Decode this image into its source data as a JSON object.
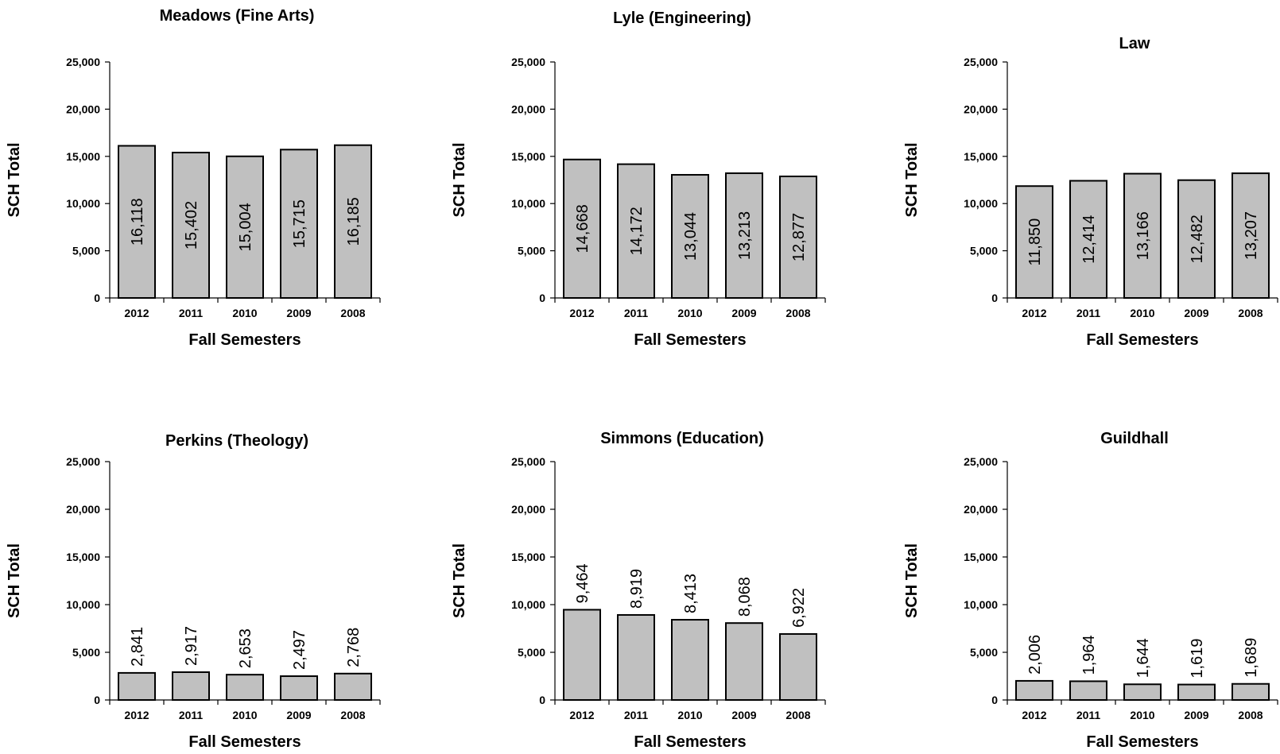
{
  "chart_data": [
    {
      "type": "bar",
      "title": "Meadows (Fine Arts)",
      "xlabel": "Fall Semesters",
      "ylabel": "SCH Total",
      "categories": [
        "2012",
        "2011",
        "2010",
        "2009",
        "2008"
      ],
      "values": [
        16118,
        15402,
        15004,
        15715,
        16185
      ],
      "value_labels": [
        "16,118",
        "15,402",
        "15,004",
        "15,715",
        "16,185"
      ],
      "label_position": "inside",
      "ylim": [
        0,
        25000
      ],
      "yticks": [
        "0",
        "5,000",
        "10,000",
        "15,000",
        "20,000",
        "25,000"
      ],
      "bar_color": "#c0c0c0",
      "grid": false
    },
    {
      "type": "bar",
      "title": "Lyle (Engineering)",
      "xlabel": "Fall Semesters",
      "ylabel": "SCH Total",
      "categories": [
        "2012",
        "2011",
        "2010",
        "2009",
        "2008"
      ],
      "values": [
        14668,
        14172,
        13044,
        13213,
        12877
      ],
      "value_labels": [
        "14,668",
        "14,172",
        "13,044",
        "13,213",
        "12,877"
      ],
      "label_position": "inside",
      "ylim": [
        0,
        25000
      ],
      "yticks": [
        "0",
        "5,000",
        "10,000",
        "15,000",
        "20,000",
        "25,000"
      ],
      "bar_color": "#c0c0c0",
      "grid": false
    },
    {
      "type": "bar",
      "title": "Law",
      "xlabel": "Fall Semesters",
      "ylabel": "SCH Total",
      "categories": [
        "2012",
        "2011",
        "2010",
        "2009",
        "2008"
      ],
      "values": [
        11850,
        12414,
        13166,
        12482,
        13207
      ],
      "value_labels": [
        "11,850",
        "12,414",
        "13,166",
        "12,482",
        "13,207"
      ],
      "label_position": "inside",
      "ylim": [
        0,
        25000
      ],
      "yticks": [
        "0",
        "5,000",
        "10,000",
        "15,000",
        "20,000",
        "25,000"
      ],
      "bar_color": "#c0c0c0",
      "grid": false
    },
    {
      "type": "bar",
      "title": "Perkins (Theology)",
      "xlabel": "Fall Semesters",
      "ylabel": "SCH Total",
      "categories": [
        "2012",
        "2011",
        "2010",
        "2009",
        "2008"
      ],
      "values": [
        2841,
        2917,
        2653,
        2497,
        2768
      ],
      "value_labels": [
        "2,841",
        "2,917",
        "2,653",
        "2,497",
        "2,768"
      ],
      "label_position": "above",
      "ylim": [
        0,
        25000
      ],
      "yticks": [
        "0",
        "5,000",
        "10,000",
        "15,000",
        "20,000",
        "25,000"
      ],
      "bar_color": "#c0c0c0",
      "grid": false
    },
    {
      "type": "bar",
      "title": "Simmons (Education)",
      "xlabel": "Fall Semesters",
      "ylabel": "SCH Total",
      "categories": [
        "2012",
        "2011",
        "2010",
        "2009",
        "2008"
      ],
      "values": [
        9464,
        8919,
        8413,
        8068,
        6922
      ],
      "value_labels": [
        "9,464",
        "8,919",
        "8,413",
        "8,068",
        "6,922"
      ],
      "label_position": "above",
      "ylim": [
        0,
        25000
      ],
      "yticks": [
        "0",
        "5,000",
        "10,000",
        "15,000",
        "20,000",
        "25,000"
      ],
      "bar_color": "#c0c0c0",
      "grid": false
    },
    {
      "type": "bar",
      "title": "Guildhall",
      "xlabel": "Fall Semesters",
      "ylabel": "SCH Total",
      "categories": [
        "2012",
        "2011",
        "2010",
        "2009",
        "2008"
      ],
      "values": [
        2006,
        1964,
        1644,
        1619,
        1689
      ],
      "value_labels": [
        "2,006",
        "1,964",
        "1,644",
        "1,619",
        "1,689"
      ],
      "label_position": "above",
      "ylim": [
        0,
        25000
      ],
      "yticks": [
        "0",
        "5,000",
        "10,000",
        "15,000",
        "20,000",
        "25,000"
      ],
      "bar_color": "#c0c0c0",
      "grid": false
    }
  ]
}
